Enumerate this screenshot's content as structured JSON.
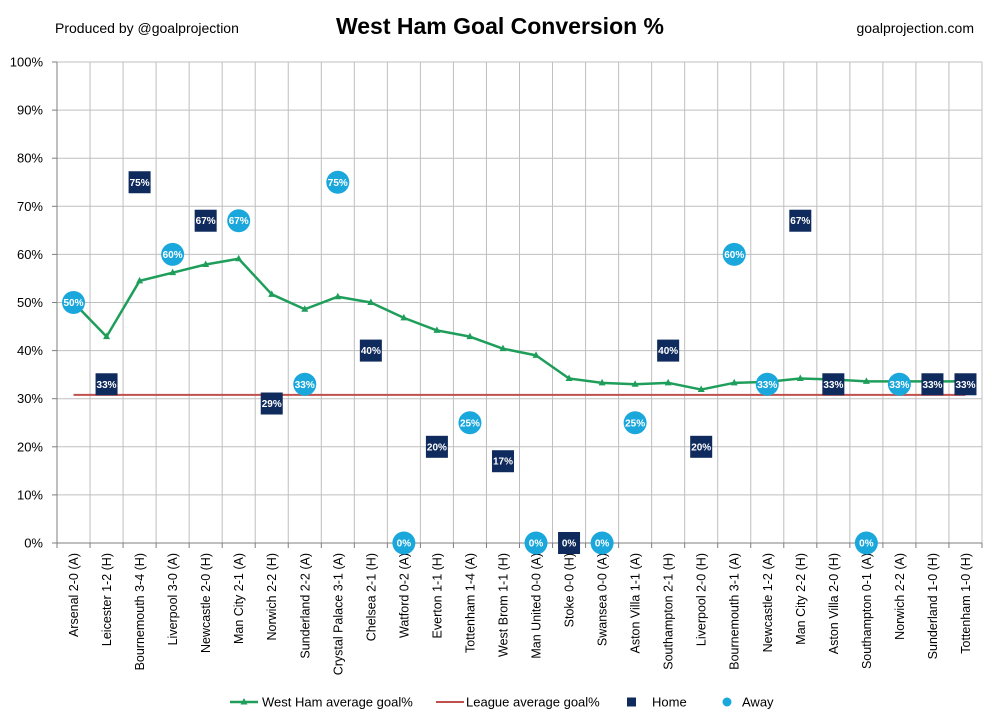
{
  "header": {
    "credit_left": "Produced by @goalprojection",
    "credit_right": "goalprojection.com"
  },
  "chart_data": {
    "type": "line",
    "title": "West Ham Goal Conversion %",
    "xlabel": "",
    "ylabel": "",
    "ylim": [
      0,
      100
    ],
    "yticks": [
      0,
      10,
      20,
      30,
      40,
      50,
      60,
      70,
      80,
      90,
      100
    ],
    "y_unit": "%",
    "grid": true,
    "legend_position": "bottom",
    "categories": [
      "Arsenal 2-0 (A)",
      "Leicester 1-2 (H)",
      "Bournemouth 3-4 (H)",
      "Liverpool 3-0 (A)",
      "Newcastle 2-0 (H)",
      "Man City 2-1 (A)",
      "Norwich 2-2 (H)",
      "Sunderland 2-2 (A)",
      "Crystal Palace 3-1 (A)",
      "Chelsea 2-1 (H)",
      "Watford 0-2 (A)",
      "Everton 1-1 (H)",
      "Tottenham 1-4 (A)",
      "West Brom 1-1 (H)",
      "Man United 0-0 (A)",
      "Stoke 0-0 (H)",
      "Swansea 0-0 (A)",
      "Aston Villa 1-1 (A)",
      "Southampton 2-1 (H)",
      "Liverpool 2-0 (H)",
      "Bournemouth 3-1 (A)",
      "Newcastle 1-2 (A)",
      "Man City 2-2 (H)",
      "Aston Villa 2-0 (H)",
      "Southampton 0-1 (A)",
      "Norwich 2-2 (A)",
      "Sunderland 1-0 (H)",
      "Tottenham 1-0 (H)"
    ],
    "series": [
      {
        "name": "West Ham average goal%",
        "color": "#1e9e5a",
        "values": [
          50,
          42.9,
          54.5,
          56.2,
          57.9,
          59.1,
          51.7,
          48.6,
          51.2,
          50,
          46.8,
          44.2,
          42.9,
          40.4,
          39,
          34.2,
          33.3,
          33,
          33.3,
          31.9,
          33.3,
          33.5,
          34.2,
          34,
          33.6,
          33.6,
          33.6,
          33.6
        ]
      },
      {
        "name": "League average goal%",
        "color": "#c0504d",
        "values": [
          30.8,
          30.8,
          30.8,
          30.8,
          30.8,
          30.8,
          30.8,
          30.8,
          30.8,
          30.8,
          30.8,
          30.8,
          30.8,
          30.8,
          30.8,
          30.8,
          30.8,
          30.8,
          30.8,
          30.8,
          30.8,
          30.8,
          30.8,
          30.8,
          30.8,
          30.8,
          30.8,
          30.8
        ]
      },
      {
        "name": "Home",
        "color": "#0f2a5c",
        "marker": "square",
        "values": [
          null,
          33,
          75,
          null,
          67,
          null,
          29,
          null,
          null,
          40,
          null,
          20,
          null,
          17,
          null,
          0,
          null,
          null,
          40,
          20,
          null,
          null,
          67,
          33,
          null,
          null,
          33,
          33
        ],
        "labels": [
          null,
          "33%",
          "75%",
          null,
          "67%",
          null,
          "29%",
          null,
          null,
          "40%",
          null,
          "20%",
          null,
          "17%",
          null,
          "0%",
          null,
          null,
          "40%",
          "20%",
          null,
          null,
          "67%",
          "33%",
          null,
          null,
          "33%",
          "33%"
        ]
      },
      {
        "name": "Away",
        "color": "#1aa7dc",
        "marker": "circle",
        "values": [
          50,
          null,
          null,
          60,
          null,
          67,
          null,
          33,
          75,
          null,
          0,
          null,
          25,
          null,
          0,
          null,
          0,
          25,
          null,
          null,
          60,
          33,
          null,
          null,
          0,
          33,
          null,
          null
        ],
        "labels": [
          "50%",
          null,
          null,
          "60%",
          null,
          "67%",
          null,
          "33%",
          "75%",
          null,
          "0%",
          null,
          "25%",
          null,
          "0%",
          null,
          "0%",
          "25%",
          null,
          null,
          "60%",
          "33%",
          null,
          null,
          "0%",
          "33%",
          null,
          null
        ]
      }
    ]
  }
}
